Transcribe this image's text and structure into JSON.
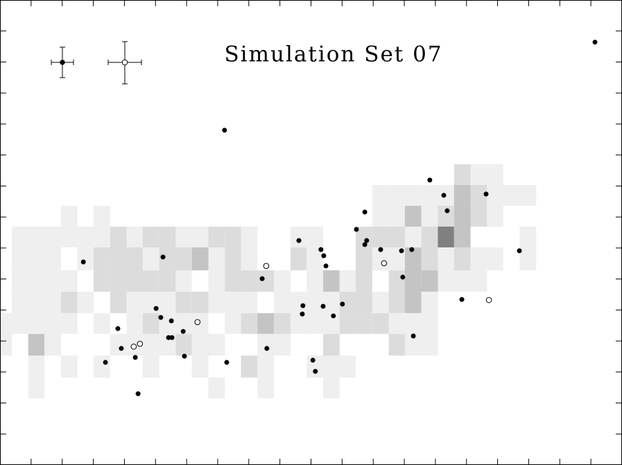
{
  "chart_data": {
    "type": "scatter",
    "title": "Simulation Set 07",
    "xlim": [
      0,
      20
    ],
    "ylim": [
      0,
      15
    ],
    "xticks": [
      0,
      1,
      2,
      3,
      4,
      5,
      6,
      7,
      8,
      9,
      10,
      11,
      12,
      13,
      14,
      15,
      16,
      17,
      18,
      19,
      20
    ],
    "yticks": [
      0,
      1,
      2,
      3,
      4,
      5,
      6,
      7,
      8,
      9,
      10,
      11,
      12,
      13,
      14,
      15
    ],
    "heatmap": {
      "xbins": [
        0,
        0.38,
        0.91,
        1.43,
        1.96,
        2.49,
        3.01,
        3.54,
        4.07,
        4.59,
        5.12,
        5.65,
        6.17,
        6.7,
        7.23,
        7.75,
        8.28,
        8.81,
        9.34,
        9.86,
        10.39,
        10.92,
        11.44,
        11.97,
        12.5,
        13.02,
        13.55,
        14.08,
        14.6,
        15.13,
        15.66,
        16.18,
        16.71,
        17.24
      ],
      "ybins": [
        2.15,
        2.82,
        3.53,
        4.23,
        4.9,
        5.59,
        6.28,
        7.02,
        7.69,
        8.36,
        9.03,
        9.7
      ],
      "colors": [
        "#ffffff",
        "#efefef",
        "#dcdcdc",
        "#c4c4c4",
        "#aaaaaa",
        "#808080"
      ],
      "z": [
        [
          0,
          0,
          1,
          0,
          0,
          0,
          0,
          0,
          0,
          0,
          0,
          0,
          0,
          1,
          0,
          0,
          1,
          0,
          0,
          0,
          1,
          0,
          0,
          0,
          0,
          0,
          0,
          0,
          0,
          0,
          0,
          0,
          0
        ],
        [
          0,
          0,
          1,
          0,
          1,
          0,
          1,
          0,
          0,
          1,
          0,
          0,
          1,
          0,
          0,
          2,
          1,
          0,
          0,
          1,
          1,
          1,
          0,
          0,
          0,
          0,
          0,
          0,
          0,
          0,
          0,
          0,
          0
        ],
        [
          1,
          0,
          3,
          1,
          0,
          0,
          0,
          1,
          1,
          1,
          1,
          2,
          1,
          1,
          0,
          0,
          1,
          1,
          0,
          0,
          2,
          0,
          0,
          0,
          2,
          1,
          1,
          0,
          0,
          0,
          0,
          0,
          0
        ],
        [
          1,
          1,
          1,
          1,
          1,
          0,
          1,
          0,
          1,
          2,
          1,
          1,
          1,
          0,
          1,
          2,
          3,
          2,
          1,
          1,
          1,
          2,
          2,
          2,
          1,
          1,
          1,
          0,
          0,
          0,
          0,
          0,
          0
        ],
        [
          0,
          1,
          1,
          1,
          2,
          1,
          0,
          2,
          1,
          1,
          1,
          2,
          2,
          1,
          1,
          1,
          0,
          1,
          1,
          1,
          1,
          2,
          2,
          1,
          2,
          3,
          1,
          0,
          0,
          0,
          0,
          0,
          0
        ],
        [
          0,
          1,
          1,
          1,
          1,
          0,
          2,
          2,
          2,
          2,
          2,
          1,
          0,
          1,
          2,
          2,
          2,
          1,
          0,
          1,
          3,
          1,
          2,
          0,
          2,
          3,
          3,
          1,
          1,
          1,
          0,
          0,
          0
        ],
        [
          0,
          1,
          1,
          1,
          0,
          1,
          2,
          2,
          2,
          1,
          2,
          2,
          3,
          1,
          2,
          1,
          0,
          0,
          2,
          1,
          0,
          0,
          2,
          1,
          1,
          3,
          2,
          1,
          2,
          1,
          1,
          0,
          1
        ],
        [
          0,
          1,
          1,
          1,
          1,
          1,
          1,
          2,
          1,
          2,
          2,
          1,
          1,
          2,
          2,
          1,
          0,
          0,
          1,
          1,
          0,
          0,
          2,
          2,
          2,
          1,
          2,
          5,
          3,
          0,
          0,
          0,
          1
        ],
        [
          0,
          0,
          0,
          0,
          1,
          0,
          1,
          0,
          0,
          0,
          0,
          0,
          0,
          0,
          0,
          0,
          0,
          0,
          0,
          0,
          0,
          0,
          0,
          1,
          1,
          3,
          1,
          2,
          3,
          2,
          1,
          0,
          0
        ],
        [
          0,
          0,
          0,
          0,
          0,
          0,
          0,
          0,
          0,
          0,
          0,
          0,
          0,
          0,
          0,
          0,
          0,
          0,
          0,
          0,
          0,
          0,
          0,
          1,
          1,
          1,
          1,
          1,
          3,
          2,
          1,
          1,
          1
        ],
        [
          0,
          0,
          0,
          0,
          0,
          0,
          0,
          0,
          0,
          0,
          0,
          0,
          0,
          0,
          0,
          0,
          0,
          0,
          0,
          0,
          0,
          0,
          0,
          0,
          0,
          0,
          0,
          0,
          2,
          1,
          1,
          0,
          0
        ]
      ]
    },
    "series": [
      {
        "marker": "filled",
        "color": "#000000",
        "x": [
          19.13,
          7.22,
          13.82,
          14.27,
          15.63,
          14.38,
          11.73,
          11.46,
          9.61,
          11.79,
          11.73,
          12.24,
          10.32,
          12.91,
          13.24,
          16.7,
          2.68,
          5.24,
          10.41,
          10.48,
          8.43,
          12.95,
          9.74,
          10.39,
          11.01,
          9.72,
          10.72,
          5.02,
          5.17,
          5.51,
          14.85,
          3.79,
          5.89,
          5.42,
          5.53,
          13.29,
          3.9,
          8.58,
          4.35,
          5.93,
          3.39,
          7.29,
          10.06,
          10.14,
          4.44
        ],
        "values": [
          13.64,
          10.8,
          9.19,
          8.7,
          8.74,
          8.2,
          8.16,
          7.6,
          7.24,
          7.24,
          7.11,
          6.95,
          6.95,
          6.91,
          6.95,
          6.91,
          6.55,
          6.71,
          6.75,
          6.42,
          6.01,
          6.06,
          5.14,
          5.12,
          5.19,
          4.87,
          4.81,
          5.05,
          4.76,
          4.65,
          5.34,
          4.4,
          4.31,
          4.11,
          4.11,
          4.16,
          3.76,
          3.76,
          3.47,
          3.51,
          3.31,
          3.31,
          3.38,
          3.02,
          2.3
        ]
      },
      {
        "marker": "open",
        "color": "#000000",
        "x": [
          8.56,
          12.35,
          6.35,
          4.5,
          4.3,
          15.72
        ],
        "values": [
          6.42,
          6.51,
          4.61,
          3.91,
          3.82,
          5.32
        ]
      }
    ]
  }
}
